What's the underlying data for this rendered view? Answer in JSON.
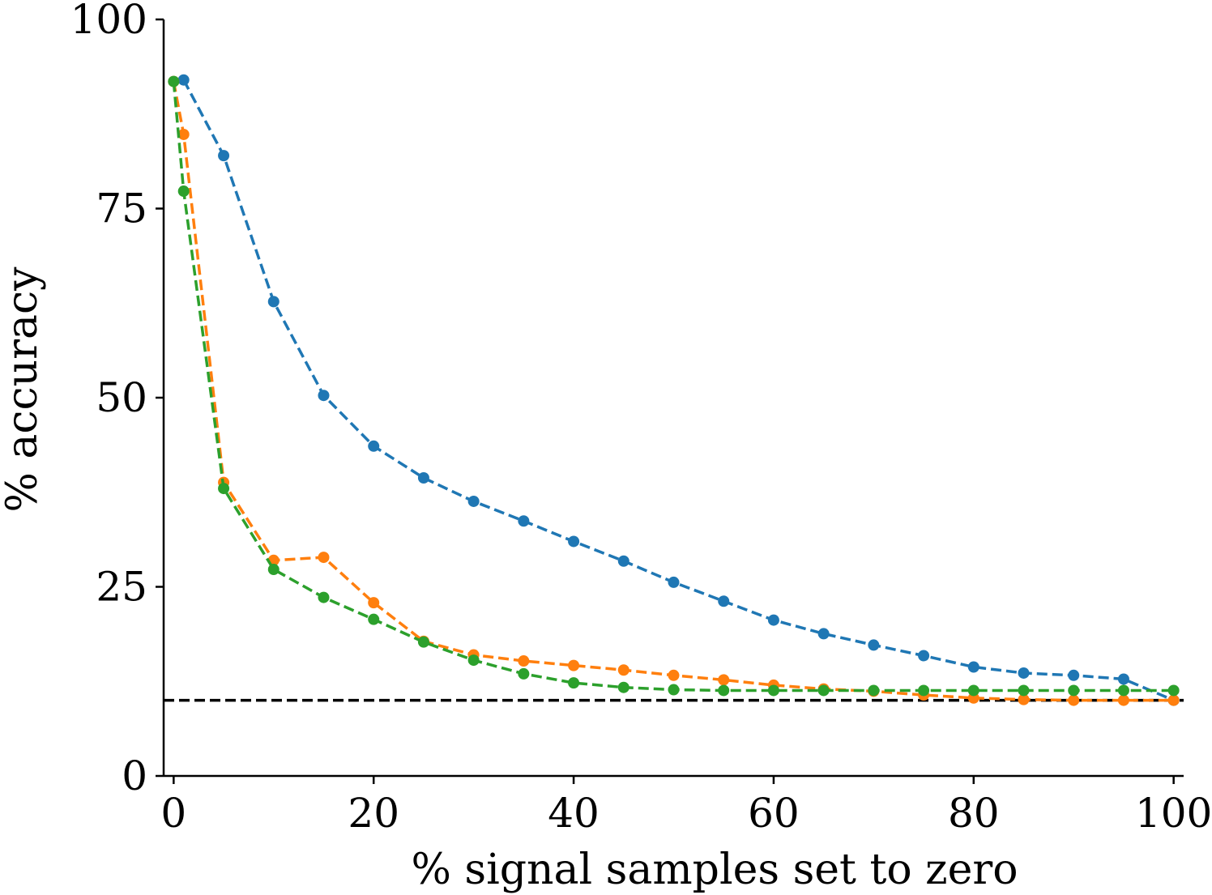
{
  "chart_data": {
    "type": "line",
    "xlabel": "% signal samples set to zero",
    "ylabel": "% accuracy",
    "xlim": [
      -1,
      101
    ],
    "ylim": [
      0,
      100
    ],
    "xticks": [
      0,
      20,
      40,
      60,
      80,
      100
    ],
    "yticks": [
      0,
      25,
      50,
      75,
      100
    ],
    "grid": false,
    "reference_line": {
      "y": 10,
      "color": "#000000",
      "style": "dashed"
    },
    "series": [
      {
        "color": "#1f77b4",
        "x": [
          1,
          5,
          10,
          15,
          20,
          25,
          30,
          35,
          40,
          45,
          50,
          55,
          60,
          65,
          70,
          75,
          80,
          85,
          90,
          95,
          100
        ],
        "y": [
          92.0,
          82.0,
          62.7,
          50.3,
          43.6,
          39.4,
          36.3,
          33.7,
          31.0,
          28.4,
          25.6,
          23.1,
          20.6,
          18.8,
          17.3,
          15.9,
          14.4,
          13.6,
          13.3,
          12.8,
          10.0
        ]
      },
      {
        "color": "#ff7f0e",
        "x": [
          0,
          1,
          5,
          10,
          15,
          20,
          25,
          30,
          35,
          40,
          45,
          50,
          55,
          60,
          65,
          70,
          75,
          80,
          85,
          90,
          95,
          100
        ],
        "y": [
          91.8,
          84.8,
          38.8,
          28.5,
          28.9,
          22.9,
          17.8,
          16.0,
          15.2,
          14.6,
          14.0,
          13.3,
          12.7,
          12.0,
          11.5,
          11.2,
          10.7,
          10.3,
          10.1,
          10.0,
          10.0,
          10.0
        ]
      },
      {
        "color": "#2ca02c",
        "x": [
          0,
          1,
          5,
          10,
          15,
          20,
          25,
          30,
          35,
          40,
          45,
          50,
          55,
          60,
          65,
          70,
          75,
          80,
          85,
          90,
          95,
          100
        ],
        "y": [
          91.8,
          77.3,
          38.0,
          27.3,
          23.6,
          20.7,
          17.7,
          15.3,
          13.5,
          12.3,
          11.7,
          11.4,
          11.3,
          11.3,
          11.3,
          11.3,
          11.3,
          11.3,
          11.3,
          11.3,
          11.3,
          11.3
        ]
      }
    ]
  }
}
